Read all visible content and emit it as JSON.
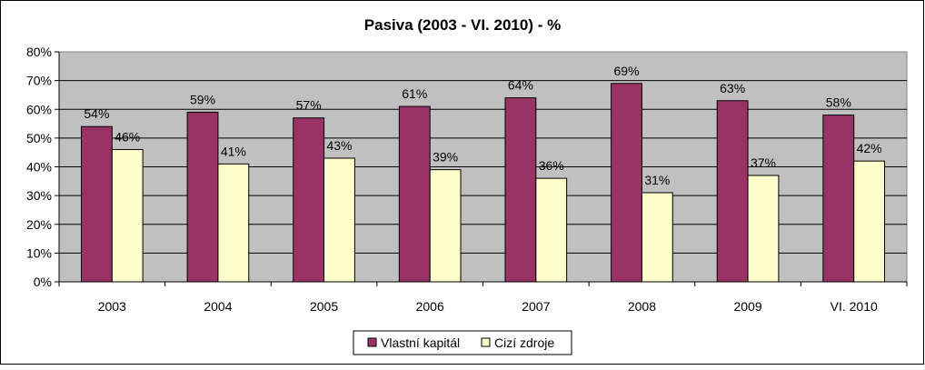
{
  "chart_data": {
    "type": "bar",
    "title": "Pasiva (2003 - VI. 2010) - %",
    "categories": [
      "2003",
      "2004",
      "2005",
      "2006",
      "2007",
      "2008",
      "2009",
      "VI. 2010"
    ],
    "series": [
      {
        "name": "Vlastní kapitál",
        "values": [
          54,
          59,
          57,
          61,
          64,
          69,
          63,
          58
        ],
        "color": "#993366"
      },
      {
        "name": "Cizí zdroje",
        "values": [
          46,
          41,
          43,
          39,
          36,
          31,
          37,
          42
        ],
        "color": "#FFFFCC"
      }
    ],
    "data_labels": {
      "Vlastní kapitál": [
        "54%",
        "59%",
        "57%",
        "61%",
        "64%",
        "69%",
        "63%",
        "58%"
      ],
      "Cizí zdroje": [
        "46%",
        "41%",
        "43%",
        "39%",
        "36%",
        "31%",
        "37%",
        "42%"
      ]
    },
    "y_ticks": [
      "0%",
      "10%",
      "20%",
      "30%",
      "40%",
      "50%",
      "60%",
      "70%",
      "80%"
    ],
    "ylim": [
      0,
      80
    ],
    "grid": true,
    "legend_position": "bottom",
    "plot_background": "#C0C0C0"
  }
}
